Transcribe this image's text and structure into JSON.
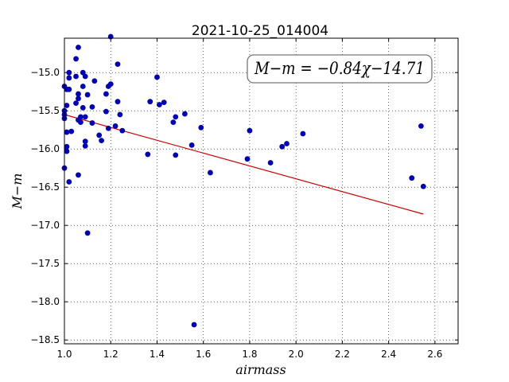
{
  "chart_data": {
    "type": "scatter",
    "title": "2021-10-25_014004",
    "xlabel": "airmass",
    "ylabel": "M−m",
    "xlim": [
      1.0,
      2.7
    ],
    "ylim": [
      -18.55,
      -14.55
    ],
    "x_ticks": [
      1.0,
      1.2,
      1.4,
      1.6,
      1.8,
      2.0,
      2.2,
      2.4,
      2.6
    ],
    "x_tick_labels": [
      "1.0",
      "1.2",
      "1.4",
      "1.6",
      "1.8",
      "2.0",
      "2.2",
      "2.4",
      "2.6"
    ],
    "y_ticks": [
      -15.0,
      -15.5,
      -16.0,
      -16.5,
      -17.0,
      -17.5,
      -18.0,
      -18.5
    ],
    "y_tick_labels": [
      "−15.0",
      "−15.5",
      "−16.0",
      "−16.5",
      "−17.0",
      "−17.5",
      "−18.0",
      "−18.5"
    ],
    "grid": true,
    "annotation": "M−m = −0.84χ−14.71",
    "fit_line": {
      "slope": -0.84,
      "intercept": -14.71,
      "x_range": [
        1.0,
        2.55
      ],
      "color": "#cc0000"
    },
    "point_color": "#0000bb",
    "points": [
      [
        1.0,
        -15.18
      ],
      [
        1.0,
        -15.5
      ],
      [
        1.0,
        -15.55
      ],
      [
        1.0,
        -15.6
      ],
      [
        1.0,
        -16.25
      ],
      [
        1.01,
        -15.22
      ],
      [
        1.01,
        -15.43
      ],
      [
        1.01,
        -15.78
      ],
      [
        1.01,
        -15.97
      ],
      [
        1.01,
        -16.03
      ],
      [
        1.02,
        -15.0
      ],
      [
        1.02,
        -15.07
      ],
      [
        1.02,
        -15.22
      ],
      [
        1.02,
        -16.43
      ],
      [
        1.03,
        -15.77
      ],
      [
        1.05,
        -15.05
      ],
      [
        1.05,
        -15.4
      ],
      [
        1.05,
        -14.82
      ],
      [
        1.06,
        -14.67
      ],
      [
        1.06,
        -15.28
      ],
      [
        1.06,
        -15.34
      ],
      [
        1.06,
        -15.62
      ],
      [
        1.06,
        -16.34
      ],
      [
        1.07,
        -15.58
      ],
      [
        1.07,
        -15.65
      ],
      [
        1.08,
        -15.18
      ],
      [
        1.08,
        -15.46
      ],
      [
        1.08,
        -15.0
      ],
      [
        1.09,
        -15.96
      ],
      [
        1.09,
        -15.05
      ],
      [
        1.09,
        -15.58
      ],
      [
        1.09,
        -15.9
      ],
      [
        1.1,
        -15.29
      ],
      [
        1.1,
        -17.1
      ],
      [
        1.12,
        -15.45
      ],
      [
        1.12,
        -15.66
      ],
      [
        1.13,
        -15.11
      ],
      [
        1.15,
        -15.82
      ],
      [
        1.16,
        -15.89
      ],
      [
        1.18,
        -15.28
      ],
      [
        1.18,
        -15.51
      ],
      [
        1.19,
        -15.18
      ],
      [
        1.19,
        -15.73
      ],
      [
        1.2,
        -15.15
      ],
      [
        1.2,
        -14.53
      ],
      [
        1.22,
        -15.7
      ],
      [
        1.23,
        -15.38
      ],
      [
        1.23,
        -14.89
      ],
      [
        1.24,
        -15.55
      ],
      [
        1.25,
        -15.76
      ],
      [
        1.36,
        -16.07
      ],
      [
        1.37,
        -15.38
      ],
      [
        1.4,
        -15.06
      ],
      [
        1.41,
        -15.42
      ],
      [
        1.43,
        -15.39
      ],
      [
        1.47,
        -15.65
      ],
      [
        1.48,
        -15.58
      ],
      [
        1.48,
        -16.08
      ],
      [
        1.52,
        -15.54
      ],
      [
        1.55,
        -15.95
      ],
      [
        1.56,
        -18.3
      ],
      [
        1.59,
        -15.72
      ],
      [
        1.63,
        -16.31
      ],
      [
        1.79,
        -16.13
      ],
      [
        1.8,
        -15.76
      ],
      [
        1.89,
        -16.18
      ],
      [
        1.94,
        -15.97
      ],
      [
        1.96,
        -15.93
      ],
      [
        2.03,
        -15.8
      ],
      [
        2.5,
        -16.38
      ],
      [
        2.54,
        -15.7
      ],
      [
        2.55,
        -16.49
      ]
    ]
  }
}
